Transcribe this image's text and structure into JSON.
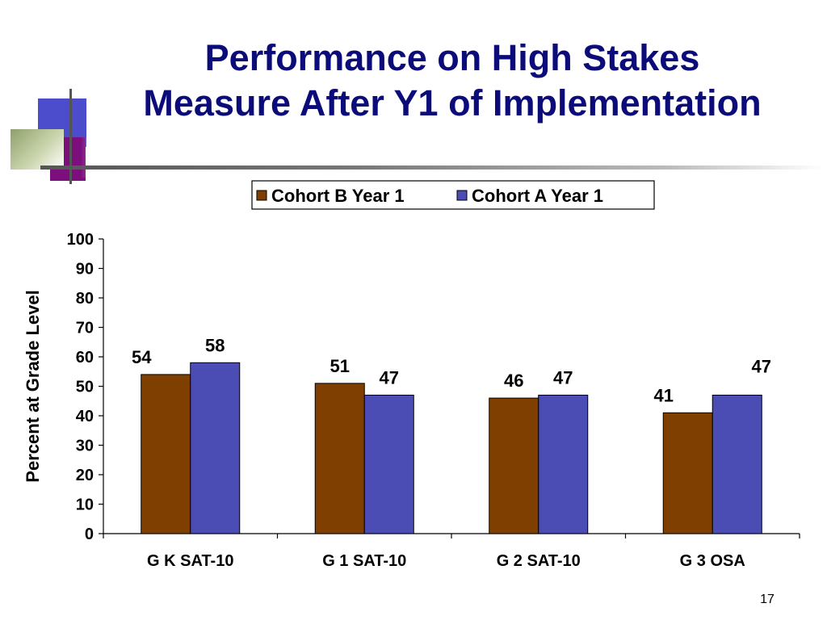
{
  "slide": {
    "title_line1": "Performance on High Stakes",
    "title_line2": "Measure After Y1 of Implementation",
    "number": "17"
  },
  "colors": {
    "title": "#0b0b7a",
    "cohort_b": "#7f3f00",
    "cohort_a": "#4b4db5",
    "deco_blue": "#4b4dcc",
    "deco_purple": "#7d0f7d",
    "deco_green": "#8fa06b"
  },
  "chart_data": {
    "type": "bar",
    "categories": [
      "G K SAT-10",
      "G 1 SAT-10",
      "G 2 SAT-10",
      "G 3 OSA"
    ],
    "series": [
      {
        "name": "Cohort B Year 1",
        "values": [
          54,
          51,
          46,
          41
        ]
      },
      {
        "name": "Cohort A Year 1",
        "values": [
          58,
          47,
          47,
          47
        ]
      }
    ],
    "data_labels": [
      [
        "54",
        "51",
        "46",
        "41"
      ],
      [
        "58",
        "47",
        "47",
        "47"
      ]
    ],
    "xlabel": "",
    "ylabel": "Percent at Grade Level",
    "ylim": [
      0,
      100
    ],
    "yticks": [
      0,
      10,
      20,
      30,
      40,
      50,
      60,
      70,
      80,
      90,
      100
    ],
    "grid": false,
    "legend_position": "top"
  }
}
